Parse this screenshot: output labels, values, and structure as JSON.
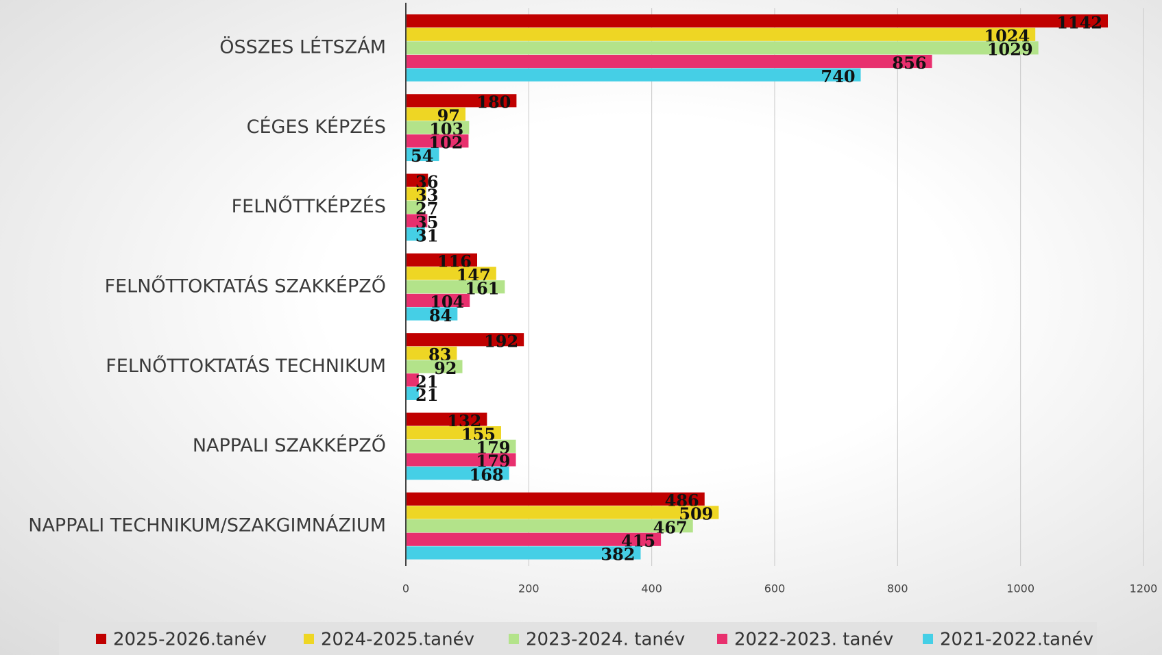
{
  "chart_data": {
    "type": "barh",
    "categories": [
      "ÖSSZES LÉTSZÁM",
      "CÉGES KÉPZÉS",
      "FELNŐTTKÉPZÉS",
      "FELNŐTTOKTATÁS SZAKKÉPZŐ",
      "FELNŐTTOKTATÁS TECHNIKUM",
      "NAPPALI SZAKKÉPZŐ",
      "NAPPALI TECHNIKUM/SZAKGIMNÁZIUM"
    ],
    "series": [
      {
        "name": "2025-2026.tanév",
        "color": "#c00000",
        "values": [
          1142,
          180,
          36,
          116,
          192,
          132,
          486
        ]
      },
      {
        "name": "2024-2025.tanév",
        "color": "#eed624",
        "values": [
          1024,
          97,
          33,
          147,
          83,
          155,
          509
        ]
      },
      {
        "name": "2023-2024. tanév",
        "color": "#b3e38a",
        "values": [
          1029,
          103,
          27,
          161,
          92,
          179,
          467
        ]
      },
      {
        "name": "2022-2023. tanév",
        "color": "#e8306e",
        "values": [
          856,
          102,
          35,
          104,
          21,
          179,
          415
        ]
      },
      {
        "name": "2021-2022.tanév",
        "color": "#45cfe6",
        "values": [
          740,
          54,
          31,
          84,
          21,
          168,
          382
        ]
      }
    ],
    "xlim": [
      0,
      1200
    ],
    "xticks": [
      0,
      200,
      400,
      600,
      800,
      1000,
      1200
    ],
    "grid": true,
    "legend": "bottom"
  }
}
